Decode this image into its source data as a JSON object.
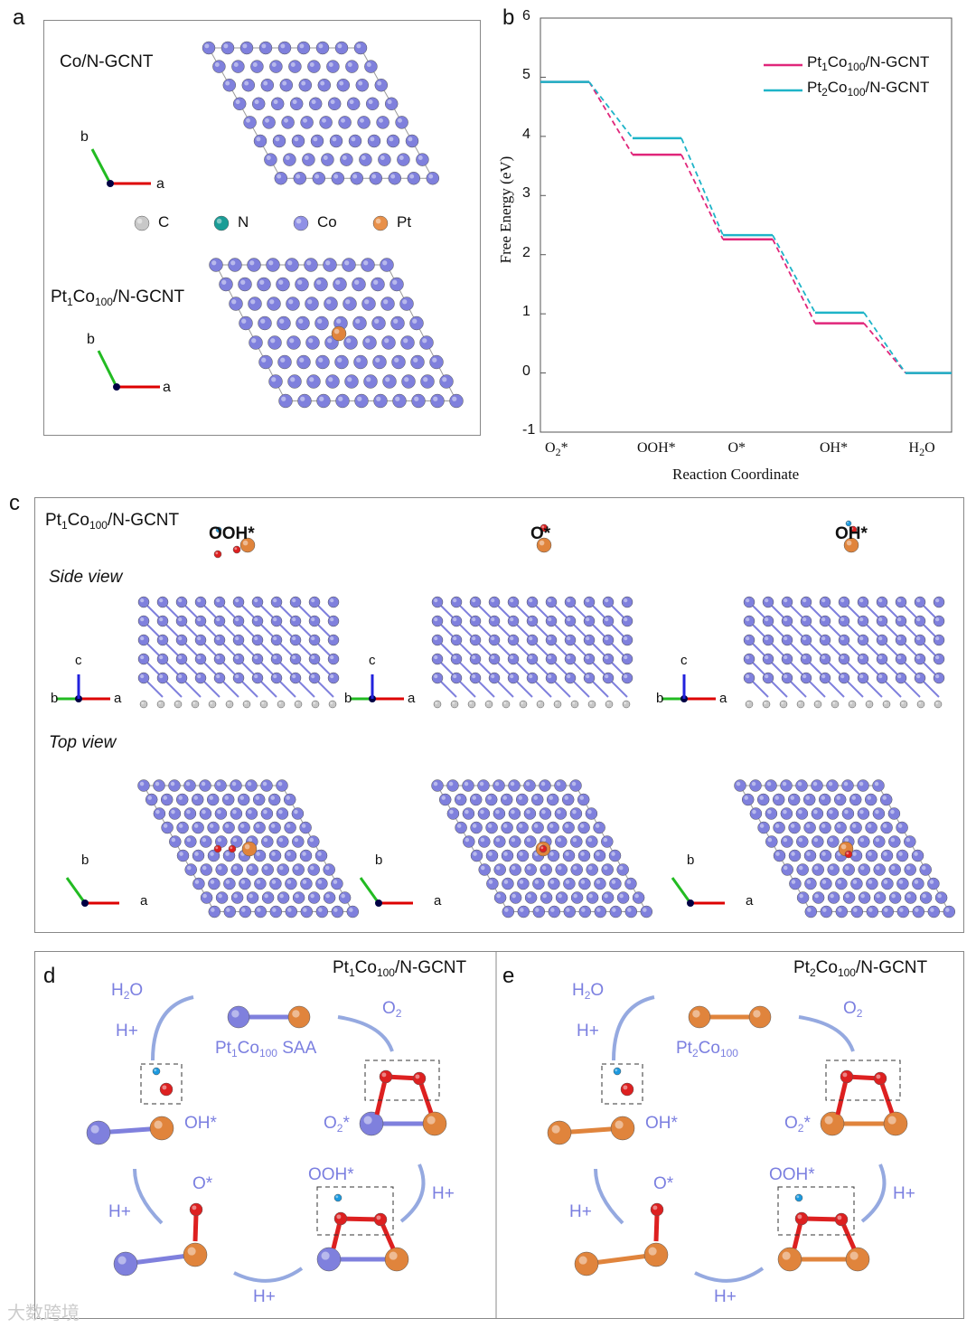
{
  "panels": {
    "a": "a",
    "b": "b",
    "c": "c",
    "d": "d",
    "e": "e"
  },
  "panel_a": {
    "top_label": "Co/N-GCNT",
    "bottom_label": {
      "p1": "Pt",
      "s1": "1",
      "p2": "Co",
      "s2": "100",
      "p3": "/N-GCNT"
    },
    "axis_a": "a",
    "axis_b": "b",
    "legend": [
      {
        "label": "C",
        "color": "#c8c8c8"
      },
      {
        "label": "N",
        "color": "#1a9c96"
      },
      {
        "label": "Co",
        "color": "#8f90e6"
      },
      {
        "label": "Pt",
        "color": "#e8904a"
      }
    ]
  },
  "chart_data": {
    "type": "line",
    "title": "",
    "xlabel": "Reaction Coordinate",
    "ylabel": "Free Energy (eV)",
    "ylim": [
      -1,
      6
    ],
    "yticks": [
      "-1",
      "0",
      "1",
      "2",
      "3",
      "4",
      "5",
      "6"
    ],
    "categories": [
      {
        "p1": "O",
        "s": "2",
        "p2": "*"
      },
      {
        "p1": "OOH*",
        "s": "",
        "p2": ""
      },
      {
        "p1": "O*",
        "s": "",
        "p2": ""
      },
      {
        "p1": "OH*",
        "s": "",
        "p2": ""
      },
      {
        "p1": "H",
        "s": "2",
        "p2": "O"
      }
    ],
    "series": [
      {
        "name": {
          "p1": "Pt",
          "s1": "1",
          "p2": "Co",
          "s2": "100",
          "p3": "/N-GCNT"
        },
        "color": "#e0267a",
        "values": [
          4.92,
          3.69,
          2.26,
          0.84,
          0
        ]
      },
      {
        "name": {
          "p1": "Pt",
          "s1": "2",
          "p2": "Co",
          "s2": "100",
          "p3": "/N-GCNT"
        },
        "color": "#1eb4c8",
        "values": [
          4.92,
          3.97,
          2.33,
          1.02,
          0
        ]
      }
    ],
    "legend_position": "top-right",
    "grid": false
  },
  "panel_c": {
    "label": {
      "p1": "Pt",
      "s1": "1",
      "p2": "Co",
      "s2": "100",
      "p3": "/N-GCNT"
    },
    "columns": [
      "OOH*",
      "O*",
      "OH*"
    ],
    "side_view": "Side view",
    "top_view": "Top view",
    "axis_a": "a",
    "axis_b": "b",
    "axis_c": "c"
  },
  "panel_d": {
    "title": {
      "p1": "Pt",
      "s1": "1",
      "p2": "Co",
      "s2": "100",
      "p3": "/N-GCNT"
    },
    "center": {
      "p1": "Pt",
      "s1": "1",
      "p2": "Co",
      "s2": "100",
      "p3": " SAA"
    },
    "h2o": {
      "p1": "H",
      "s": "2",
      "p2": "O"
    },
    "o2": {
      "p1": "O",
      "s": "2"
    },
    "o2star": {
      "p1": "O",
      "s": "2",
      "p2": "*"
    },
    "hplus": "H+",
    "ooh": "OOH*",
    "o": "O*",
    "oh": "OH*"
  },
  "panel_e": {
    "title": {
      "p1": "Pt",
      "s1": "2",
      "p2": "Co",
      "s2": "100",
      "p3": "/N-GCNT"
    },
    "center": {
      "p1": "Pt",
      "s1": "2",
      "p2": "Co",
      "s2": "100",
      "p3": ""
    },
    "h2o": {
      "p1": "H",
      "s": "2",
      "p2": "O"
    },
    "o2": {
      "p1": "O",
      "s": "2"
    },
    "o2star": {
      "p1": "O",
      "s": "2",
      "p2": "*"
    },
    "hplus": "H+",
    "ooh": "OOH*",
    "o": "O*",
    "oh": "OH*"
  },
  "watermark": "大数跨境"
}
